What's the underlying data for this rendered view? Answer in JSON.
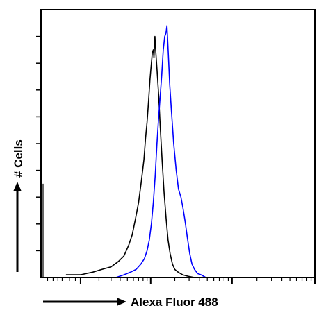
{
  "chart_data": {
    "type": "line",
    "title": "",
    "xlabel": "Alexa Fluor 488",
    "ylabel": "# Cells",
    "x_scale": "log",
    "xlim": [
      0,
      1000
    ],
    "ylim": [
      0,
      100
    ],
    "grid": false,
    "legend": "none",
    "series": [
      {
        "color": "#000000",
        "points": [
          [
            0.5,
            1
          ],
          [
            1.0,
            1
          ],
          [
            1.6,
            2
          ],
          [
            2.2,
            3
          ],
          [
            3.0,
            4
          ],
          [
            3.8,
            6
          ],
          [
            4.5,
            8
          ],
          [
            5.2,
            12
          ],
          [
            5.8,
            16
          ],
          [
            6.4,
            22
          ],
          [
            7.0,
            28
          ],
          [
            7.6,
            36
          ],
          [
            8.2,
            44
          ],
          [
            8.6,
            52
          ],
          [
            9.0,
            58
          ],
          [
            9.4,
            66
          ],
          [
            9.8,
            74
          ],
          [
            10.2,
            80
          ],
          [
            10.5,
            84
          ],
          [
            10.8,
            85
          ],
          [
            11.0,
            82
          ],
          [
            11.3,
            90
          ],
          [
            11.6,
            84
          ],
          [
            12.0,
            78
          ],
          [
            12.6,
            68
          ],
          [
            13.2,
            56
          ],
          [
            13.9,
            44
          ],
          [
            14.7,
            32
          ],
          [
            15.6,
            22
          ],
          [
            16.5,
            14
          ],
          [
            17.5,
            9
          ],
          [
            18.7,
            5
          ],
          [
            20.0,
            3
          ],
          [
            22.0,
            2
          ],
          [
            25.0,
            1
          ],
          [
            29.0,
            0.5
          ],
          [
            35.0,
            0
          ]
        ]
      },
      {
        "color": "#0000ff",
        "points": [
          [
            3.5,
            0
          ],
          [
            4.5,
            1
          ],
          [
            5.5,
            2
          ],
          [
            6.5,
            3
          ],
          [
            7.5,
            5
          ],
          [
            8.3,
            7
          ],
          [
            9.0,
            10
          ],
          [
            9.6,
            14
          ],
          [
            10.2,
            20
          ],
          [
            10.8,
            28
          ],
          [
            11.4,
            38
          ],
          [
            12.0,
            50
          ],
          [
            12.6,
            60
          ],
          [
            13.2,
            68
          ],
          [
            13.8,
            76
          ],
          [
            14.4,
            85
          ],
          [
            15.0,
            90
          ],
          [
            15.5,
            91
          ],
          [
            16.0,
            94
          ],
          [
            16.6,
            84
          ],
          [
            17.3,
            72
          ],
          [
            18.2,
            62
          ],
          [
            19.4,
            50
          ],
          [
            20.8,
            40
          ],
          [
            22.2,
            33
          ],
          [
            23.8,
            30
          ],
          [
            25.2,
            26
          ],
          [
            26.8,
            21
          ],
          [
            28.5,
            15
          ],
          [
            30.5,
            9
          ],
          [
            32.5,
            5
          ],
          [
            35.0,
            3
          ],
          [
            38.0,
            1.5
          ],
          [
            42.0,
            1
          ],
          [
            48.0,
            0
          ]
        ]
      }
    ]
  }
}
